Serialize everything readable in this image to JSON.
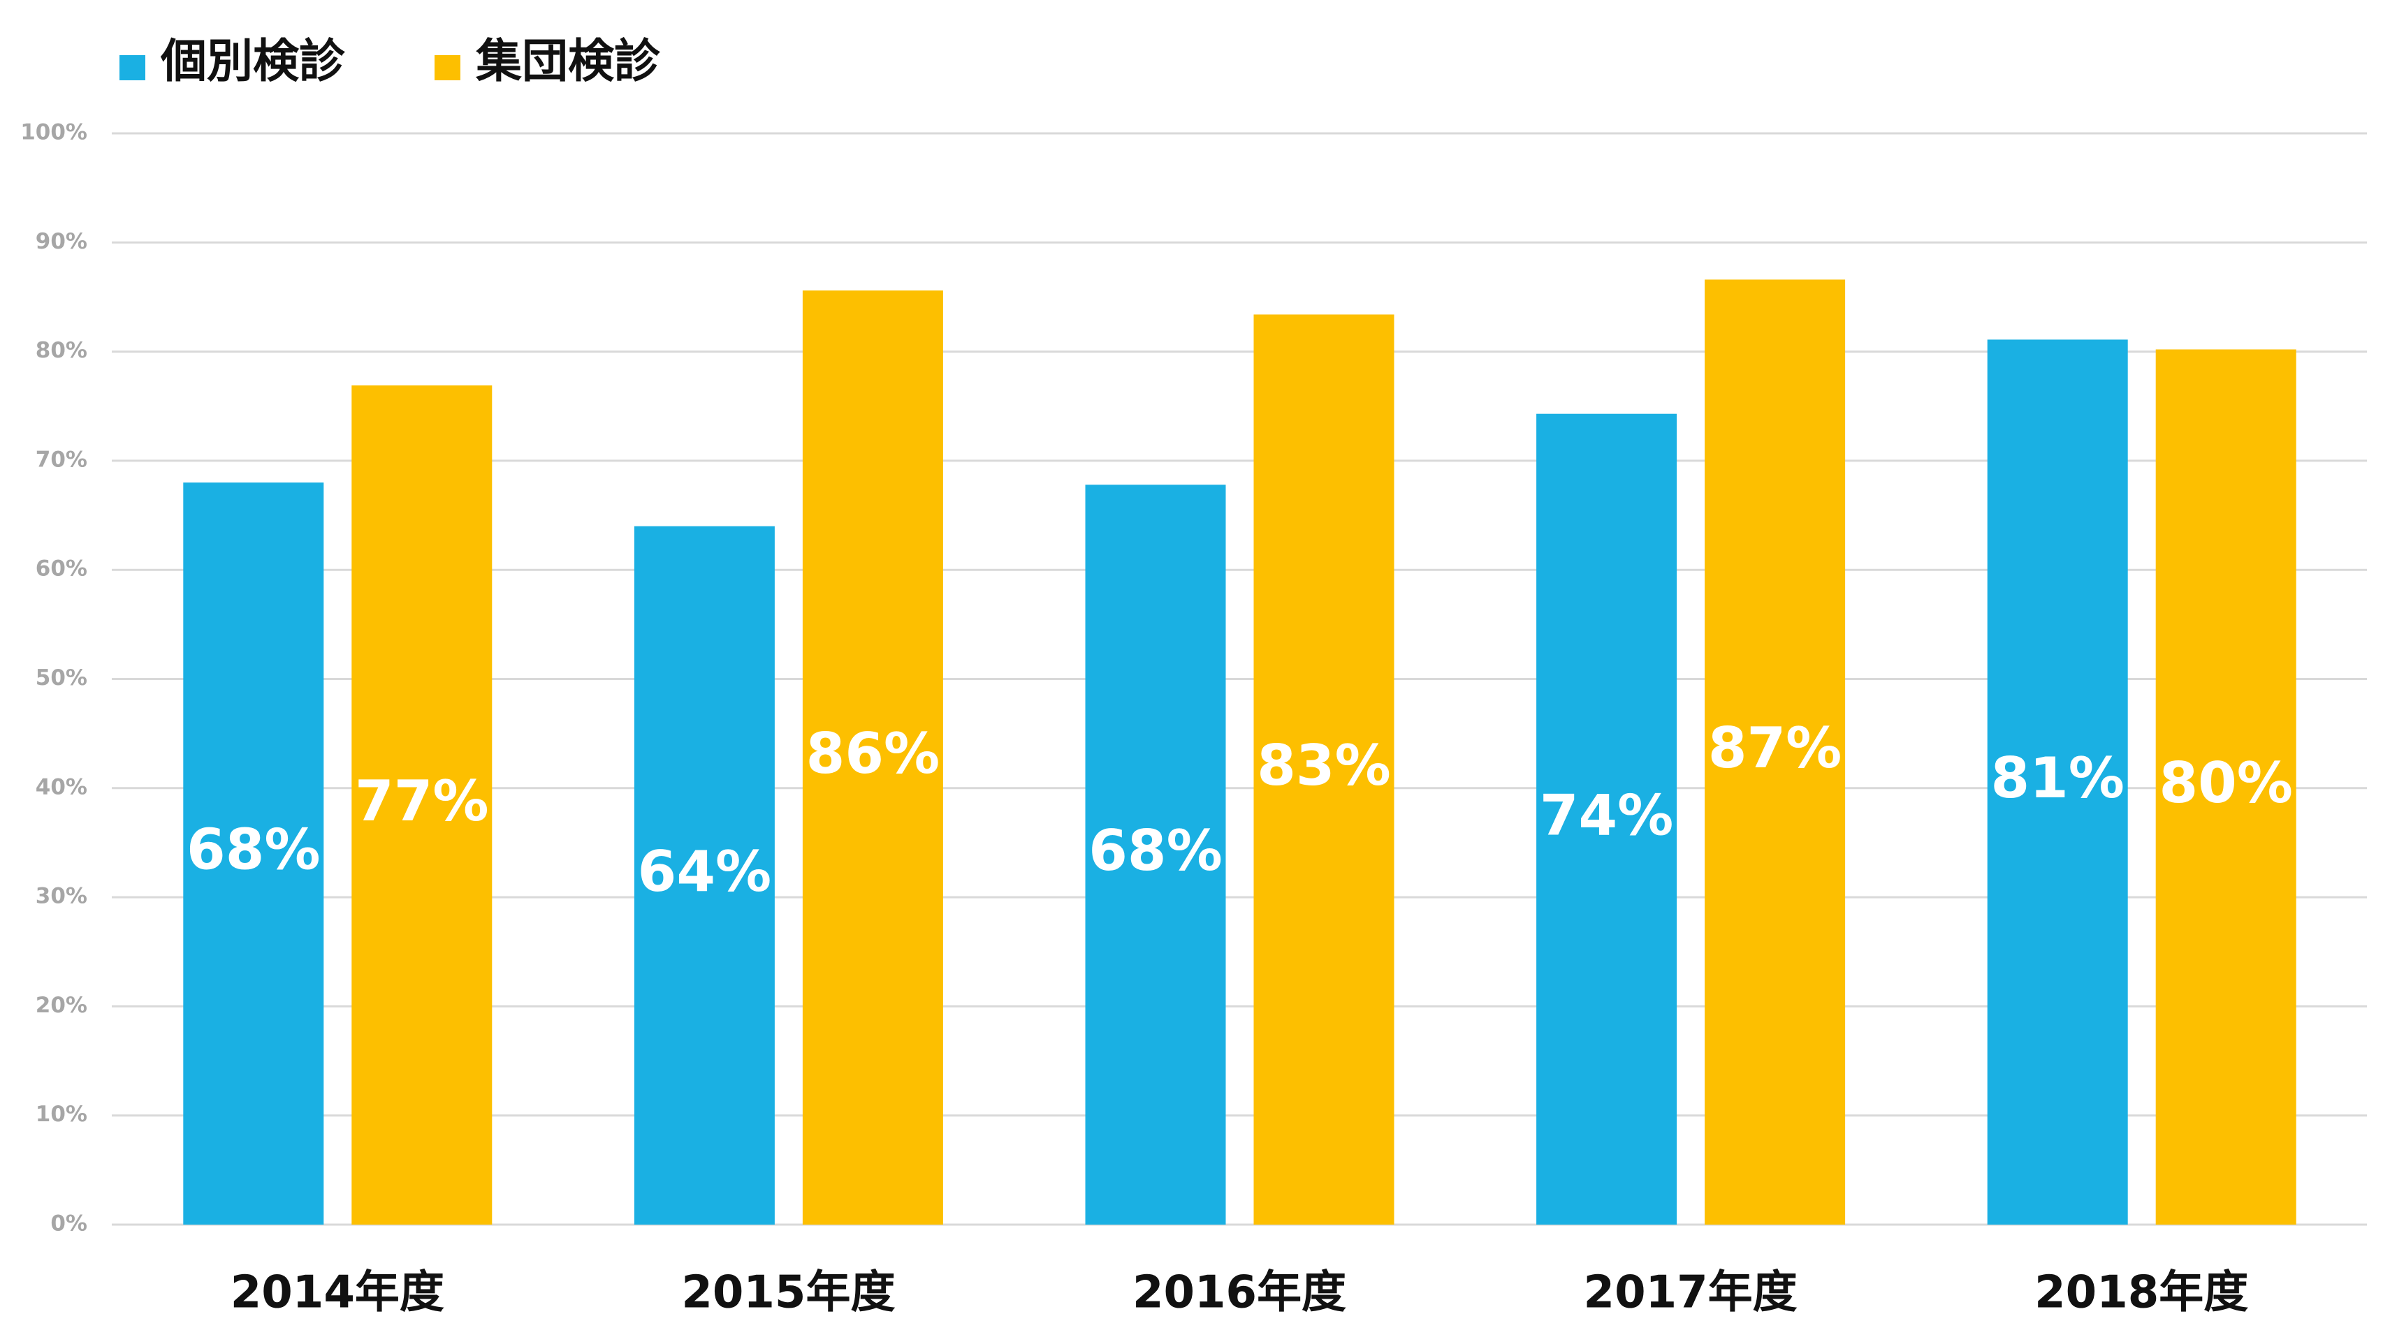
{
  "chart_data": {
    "type": "bar",
    "categories": [
      "2014年度",
      "2015年度",
      "2016年度",
      "2017年度",
      "2018年度"
    ],
    "series": [
      {
        "name": "個別検診",
        "color": "#1ab0e3",
        "values": [
          68,
          64,
          67.8,
          74.3,
          81.1
        ],
        "value_labels": [
          "68%",
          "64%",
          "68%",
          "74%",
          "81%"
        ]
      },
      {
        "name": "集団検診",
        "color": "#fdbf00",
        "values": [
          76.9,
          85.6,
          83.4,
          86.6,
          80.2
        ],
        "value_labels": [
          "77%",
          "86%",
          "83%",
          "87%",
          "80%"
        ]
      }
    ],
    "ylim": [
      0,
      100
    ],
    "yticks": [
      {
        "value": 0,
        "label": "0%"
      },
      {
        "value": 10,
        "label": "10%"
      },
      {
        "value": 20,
        "label": "20%"
      },
      {
        "value": 30,
        "label": "30%"
      },
      {
        "value": 40,
        "label": "40%"
      },
      {
        "value": 50,
        "label": "50%"
      },
      {
        "value": 60,
        "label": "60%"
      },
      {
        "value": 70,
        "label": "70%"
      },
      {
        "value": 80,
        "label": "80%"
      },
      {
        "value": 90,
        "label": "90%"
      },
      {
        "value": 100,
        "label": "100%"
      }
    ],
    "grid": true,
    "legend": "top-left"
  }
}
